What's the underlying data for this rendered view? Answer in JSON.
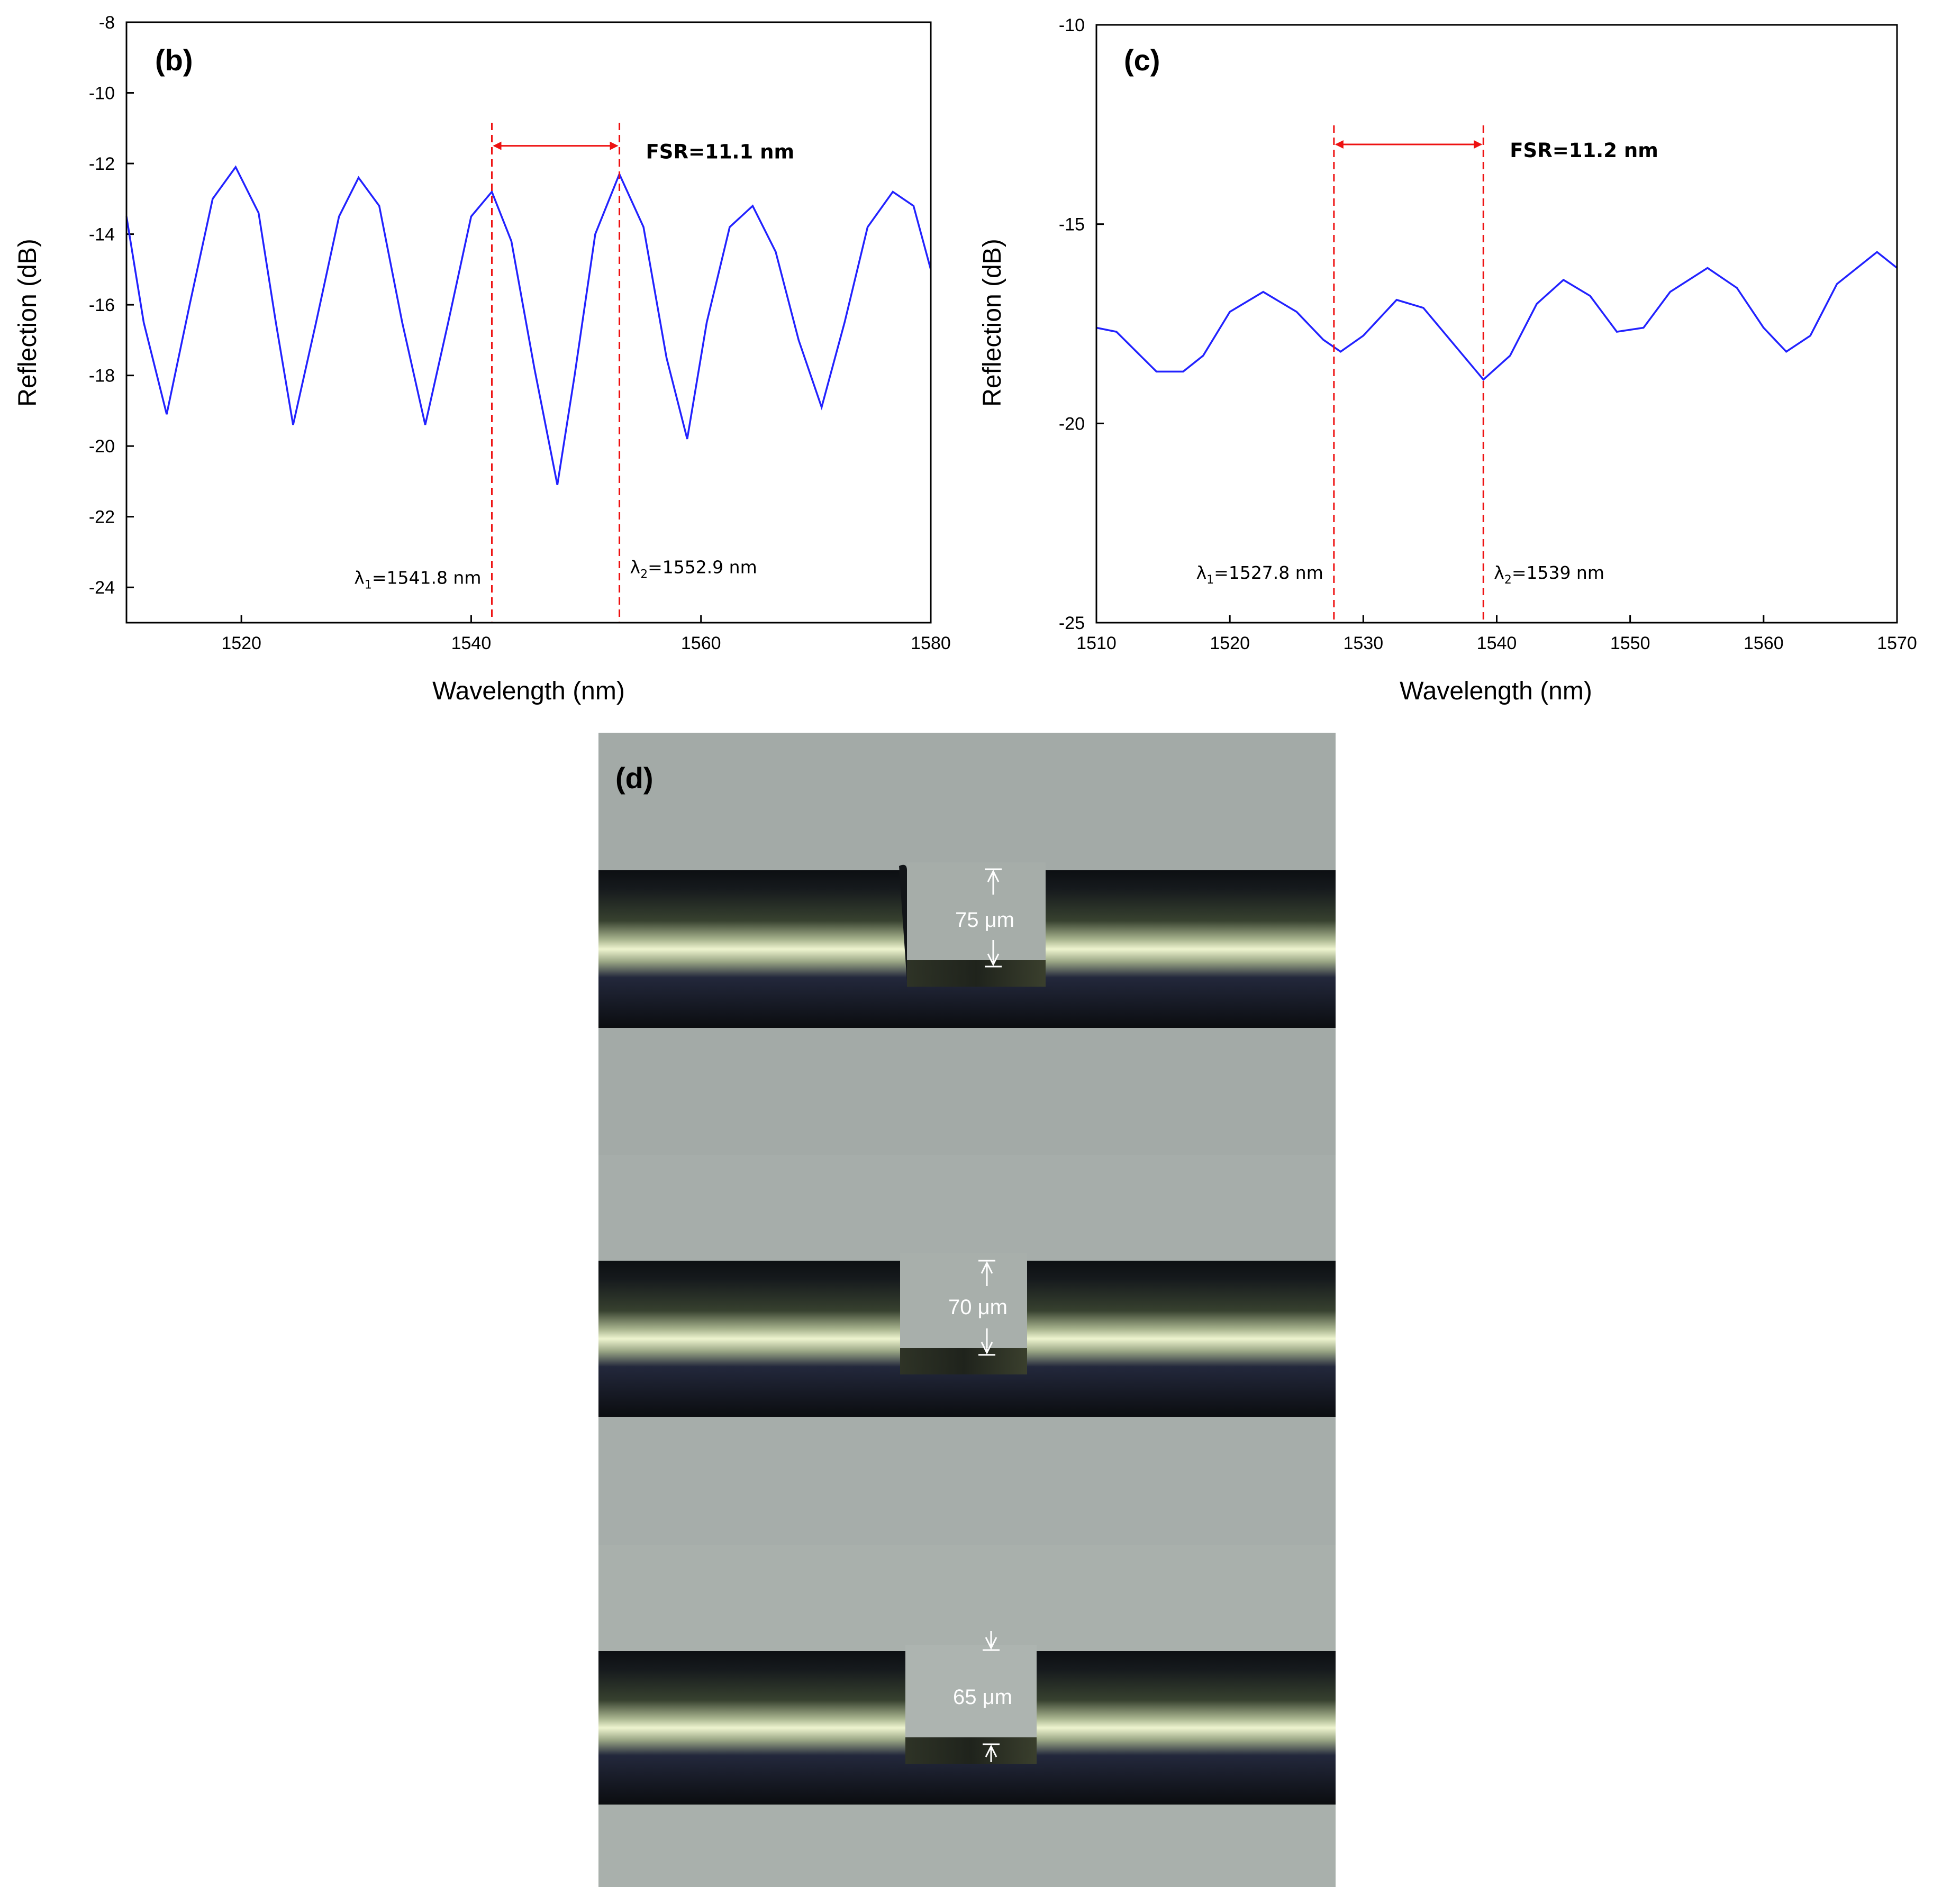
{
  "chart_data": [
    {
      "panel": "(b)",
      "type": "line",
      "xlabel": "Wavelength (nm)",
      "ylabel": "Reflection (dB)",
      "xlim": [
        1510,
        1580
      ],
      "ylim": [
        -25,
        -8
      ],
      "xticks": [
        1520,
        1540,
        1560,
        1580
      ],
      "yticks": [
        -24,
        -22,
        -20,
        -18,
        -16,
        -14,
        -12,
        -10,
        -8
      ],
      "color": "#2222ff",
      "series": [
        {
          "x": [
            1510.0,
            1511.5,
            1513.5,
            1515.5,
            1517.5,
            1519.5,
            1521.5,
            1523.0,
            1524.5,
            1526.5,
            1528.5,
            1530.2,
            1532.0,
            1534.0,
            1536.0,
            1538.0,
            1540.0,
            1541.8,
            1543.5,
            1545.5,
            1547.5,
            1549.0,
            1550.8,
            1552.9,
            1555.0,
            1557.0,
            1558.8,
            1560.5,
            1562.5,
            1564.5,
            1566.5,
            1568.5,
            1570.5,
            1572.5,
            1574.5,
            1576.7,
            1578.5,
            1580.0
          ],
          "y": [
            -13.5,
            -16.5,
            -19.1,
            -16.0,
            -13.0,
            -12.1,
            -13.4,
            -16.5,
            -19.4,
            -16.5,
            -13.5,
            -12.4,
            -13.2,
            -16.5,
            -19.4,
            -16.5,
            -13.5,
            -12.8,
            -14.2,
            -17.8,
            -21.1,
            -18.0,
            -14.0,
            -12.3,
            -13.8,
            -17.5,
            -19.8,
            -16.5,
            -13.8,
            -13.2,
            -14.5,
            -17.0,
            -18.9,
            -16.5,
            -13.8,
            -12.8,
            -13.2,
            -15.0
          ]
        }
      ],
      "vlines": [
        1541.8,
        1552.9
      ],
      "fsr_label": "FSR=11.1 nm",
      "fsr_y": -11.5,
      "lambda1": {
        "prefix": "λ",
        "sub": "1",
        "value": "=1541.8 nm",
        "x": 1541.8,
        "y": -23.9
      },
      "lambda2": {
        "prefix": "λ",
        "sub": "2",
        "value": "=1552.9 nm",
        "x": 1552.9,
        "y": -23.6
      }
    },
    {
      "panel": "(c)",
      "type": "line",
      "xlabel": "Wavelength (nm)",
      "ylabel": "Reflection (dB)",
      "xlim": [
        1510,
        1570
      ],
      "ylim": [
        -25,
        -10
      ],
      "xticks": [
        1510,
        1520,
        1530,
        1540,
        1550,
        1560,
        1570
      ],
      "yticks": [
        -25,
        -20,
        -15,
        -10
      ],
      "color": "#2222ff",
      "series": [
        {
          "x": [
            1510.0,
            1511.5,
            1513.0,
            1514.5,
            1516.5,
            1518.0,
            1520.0,
            1522.5,
            1525.0,
            1527.0,
            1528.3,
            1530.0,
            1532.5,
            1534.5,
            1536.5,
            1539.0,
            1541.0,
            1543.0,
            1545.0,
            1547.0,
            1549.0,
            1551.0,
            1553.0,
            1555.8,
            1558.0,
            1560.0,
            1561.7,
            1563.5,
            1565.5,
            1568.5,
            1570.0
          ],
          "y": [
            -17.6,
            -17.7,
            -18.2,
            -18.7,
            -18.7,
            -18.3,
            -17.2,
            -16.7,
            -17.2,
            -17.9,
            -18.2,
            -17.8,
            -16.9,
            -17.1,
            -17.9,
            -18.9,
            -18.3,
            -17.0,
            -16.4,
            -16.8,
            -17.7,
            -17.6,
            -16.7,
            -16.1,
            -16.6,
            -17.6,
            -18.2,
            -17.8,
            -16.5,
            -15.7,
            -16.1
          ]
        }
      ],
      "vlines": [
        1527.8,
        1539
      ],
      "fsr_label": "FSR=11.2 nm",
      "fsr_y": -13.0,
      "lambda1": {
        "prefix": "λ",
        "sub": "1",
        "value": "=1527.8 nm",
        "x": 1527.8,
        "y": -23.9
      },
      "lambda2": {
        "prefix": "λ",
        "sub": "2",
        "value": "=1539 nm",
        "x": 1539,
        "y": -23.9
      }
    }
  ],
  "micrograph": {
    "panel_label": "(d)",
    "rows": [
      {
        "label": "75 μm"
      },
      {
        "label": "70 μm"
      },
      {
        "label": "65 μm"
      }
    ]
  }
}
